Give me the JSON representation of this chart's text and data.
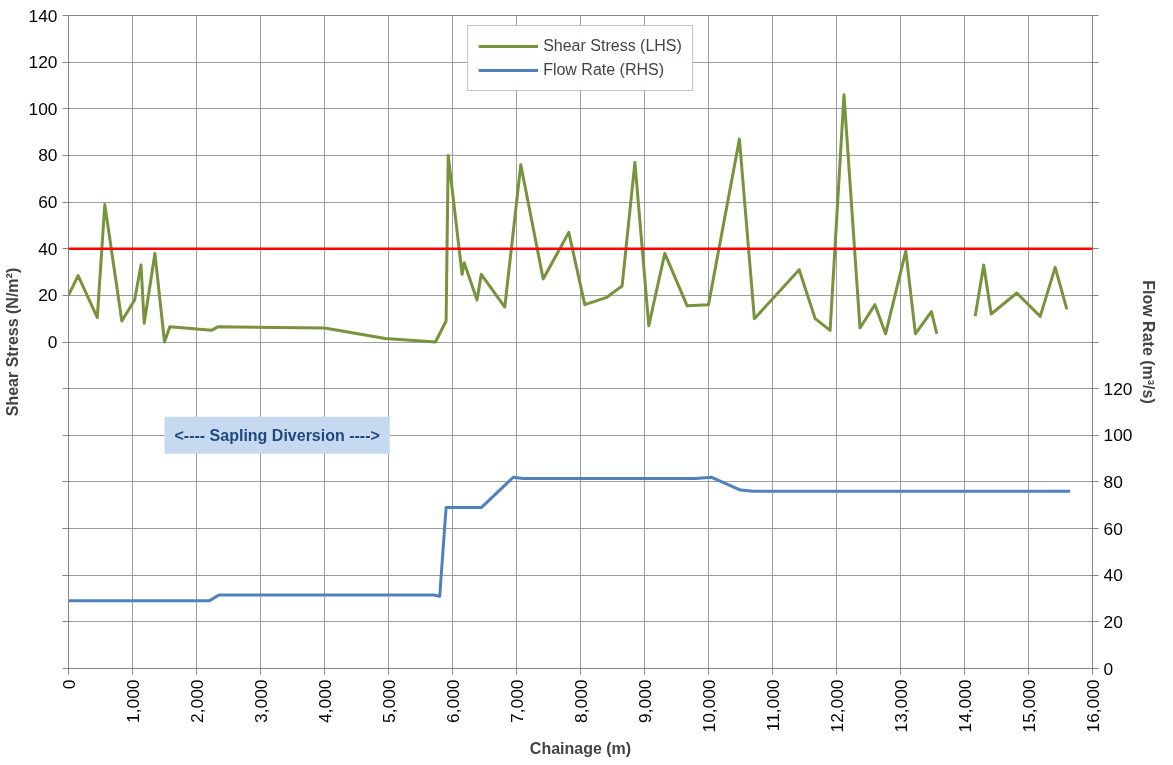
{
  "chart_data": {
    "type": "line",
    "xlabel": "Chainage (m)",
    "ylabel": "Shear Stress (N/m²)",
    "y2label": "Flow Rate (m³/s)",
    "xlim": [
      0,
      16000
    ],
    "xticks": [
      {
        "value": 0,
        "label": "0"
      },
      {
        "value": 1000,
        "label": "1,000"
      },
      {
        "value": 2000,
        "label": "2,000"
      },
      {
        "value": 3000,
        "label": "3,000"
      },
      {
        "value": 4000,
        "label": "4,000"
      },
      {
        "value": 5000,
        "label": "5,000"
      },
      {
        "value": 6000,
        "label": "6,000"
      },
      {
        "value": 7000,
        "label": "7,000"
      },
      {
        "value": 8000,
        "label": "8,000"
      },
      {
        "value": 9000,
        "label": "9,000"
      },
      {
        "value": 10000,
        "label": "10,000"
      },
      {
        "value": 11000,
        "label": "11,000"
      },
      {
        "value": 12000,
        "label": "12,000"
      },
      {
        "value": 13000,
        "label": "13,000"
      },
      {
        "value": 14000,
        "label": "14,000"
      },
      {
        "value": 15000,
        "label": "15,000"
      },
      {
        "value": 16000,
        "label": "16,000"
      }
    ],
    "ylim": [
      -140,
      140
    ],
    "yticks": [
      {
        "value": -140,
        "label": null
      },
      {
        "value": -120,
        "label": null
      },
      {
        "value": -100,
        "label": null
      },
      {
        "value": -80,
        "label": null
      },
      {
        "value": -60,
        "label": null
      },
      {
        "value": -40,
        "label": null
      },
      {
        "value": -20,
        "label": null
      },
      0,
      20,
      40,
      60,
      80,
      100,
      120,
      140
    ],
    "y2lim": [
      0,
      280
    ],
    "y2ticks": [
      0,
      20,
      40,
      60,
      80,
      100,
      120,
      {
        "value": 140,
        "label": null
      },
      {
        "value": 160,
        "label": null
      },
      {
        "value": 180,
        "label": null
      },
      {
        "value": 200,
        "label": null
      },
      {
        "value": 220,
        "label": null
      },
      {
        "value": 240,
        "label": null
      },
      {
        "value": 260,
        "label": null
      },
      {
        "value": 280,
        "label": null
      }
    ],
    "grid": true,
    "legend": "top",
    "line_style": "solid",
    "marker": "none",
    "ref_lines": [
      {
        "axis": "y",
        "value": 40,
        "label": null,
        "color": "#ff0000"
      }
    ],
    "annotations": [
      "<---- Sapling Diversion ---->"
    ],
    "series": [
      {
        "name": "Shear Stress (LHS)",
        "color": "#77933c",
        "x": [
          0,
          150,
          450,
          567,
          833,
          1033,
          1133,
          1183,
          1350,
          1500,
          1583,
          2233,
          2333,
          4000,
          4950,
          5733,
          5900,
          5933,
          6150,
          6183,
          6383,
          6450,
          6817,
          7067,
          7417,
          7817,
          8067,
          8400,
          8650,
          8850,
          9067,
          9317,
          9667,
          10000,
          10483,
          10717,
          11417,
          11667,
          11900,
          12117,
          12367,
          12600,
          12767,
          13083,
          13233,
          13483,
          13567,
          13900,
          14167,
          14300,
          14417,
          14817,
          15183,
          15417,
          15600
        ],
        "values": [
          20,
          28.5,
          10.5,
          59,
          9,
          18,
          33,
          8,
          38,
          0,
          6.5,
          5,
          6.5,
          6,
          1.5,
          0,
          9,
          80,
          29,
          34,
          18,
          29,
          15,
          76,
          27,
          47,
          16,
          19,
          24,
          77,
          7,
          38,
          15.5,
          16,
          87,
          10,
          31,
          10,
          5,
          106,
          6,
          16,
          3.5,
          39,
          3.5,
          13,
          3.5,
          null,
          11,
          33,
          12,
          21,
          11,
          32,
          14
        ]
      },
      {
        "name": "Flow Rate (RHS)",
        "color": "#4f81bd",
        "axis": "y2",
        "x": [
          0,
          2200,
          2350,
          5700,
          5800,
          5900,
          6450,
          6950,
          7100,
          9800,
          10050,
          10500,
          10700,
          15650
        ],
        "values": [
          29,
          29,
          31.5,
          31.5,
          31,
          69,
          69,
          82,
          81.5,
          81.5,
          82,
          76.5,
          76,
          76
        ]
      }
    ]
  }
}
